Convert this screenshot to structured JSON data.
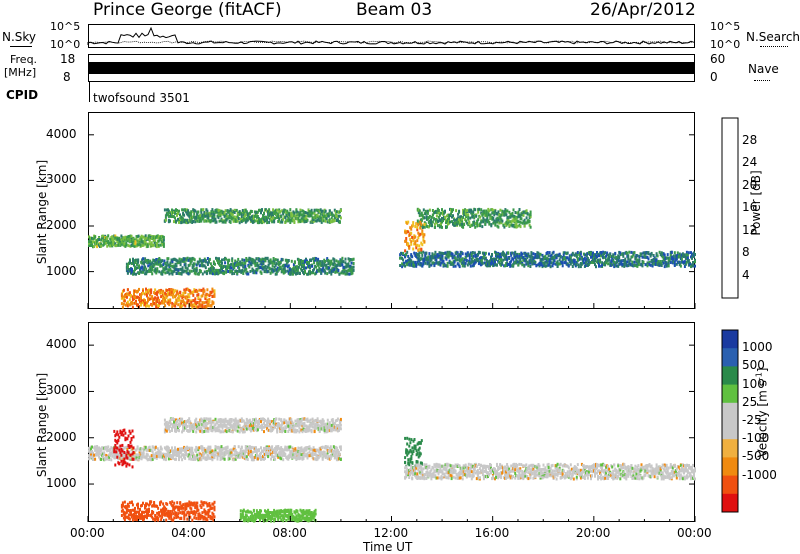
{
  "header": {
    "station": "Prince George (fitACF)",
    "beam": "Beam 03",
    "date": "26/Apr/2012"
  },
  "noise_panel": {
    "left_label": "N.Sky",
    "right_label": "N.Search",
    "top_tick": "10^5",
    "bottom_tick": "10^0"
  },
  "freq_panel": {
    "left_label_1": "Freq.",
    "left_label_2": "[MHz]",
    "top_tick": "18",
    "bottom_tick": "8",
    "right_label": "Nave",
    "right_top_tick": "60",
    "right_bottom_tick": "0"
  },
  "cpid_panel": {
    "left_label": "CPID",
    "program": "twofsound 3501"
  },
  "x_axis": {
    "label": "Time UT",
    "ticks": [
      "00:00",
      "04:00",
      "08:00",
      "12:00",
      "16:00",
      "20:00",
      "00:00"
    ]
  },
  "colors": {
    "power": [
      "#1a1aff",
      "#1a4fb0",
      "#2a7a6a",
      "#3a9a4a",
      "#7cc040",
      "#f0c020",
      "#f08a10",
      "#f05010",
      "#e01a1a"
    ],
    "velocity": [
      "#e01010",
      "#f05010",
      "#f08a10",
      "#f0b040",
      "#c8c8c8",
      "#c8c8c8",
      "#60c040",
      "#2a8a4a",
      "#2a60b0",
      "#1a3aa0"
    ]
  },
  "chart_data": [
    {
      "type": "heatmap",
      "title": "",
      "xlabel": "",
      "ylabel": "Slant Range [km]",
      "xlim": [
        0,
        24
      ],
      "ylim": [
        180,
        4500
      ],
      "yticks": [
        1000,
        2000,
        3000,
        4000
      ],
      "colorbar": {
        "label": "Power [dB]",
        "range": [
          0,
          32
        ],
        "ticks": [
          "4",
          "8",
          "12",
          "16",
          "20",
          "24",
          "28"
        ]
      },
      "echo_bands": [
        {
          "x_start": 0.0,
          "x_end": 3.0,
          "y_center": 1700,
          "y_width": 150,
          "level": 14
        },
        {
          "x_start": 3.0,
          "x_end": 10.0,
          "y_center": 2250,
          "y_width": 180,
          "level": 12
        },
        {
          "x_start": 1.5,
          "x_end": 10.5,
          "y_center": 1150,
          "y_width": 220,
          "level": 10
        },
        {
          "x_start": 1.3,
          "x_end": 5.0,
          "y_center": 450,
          "y_width": 250,
          "level": 24
        },
        {
          "x_start": 12.3,
          "x_end": 24.0,
          "y_center": 1300,
          "y_width": 200,
          "level": 8
        },
        {
          "x_start": 13.0,
          "x_end": 17.5,
          "y_center": 2200,
          "y_width": 250,
          "level": 12
        },
        {
          "x_start": 12.5,
          "x_end": 13.3,
          "y_center": 1800,
          "y_width": 400,
          "level": 22
        }
      ]
    },
    {
      "type": "heatmap",
      "title": "",
      "xlabel": "Time UT",
      "ylabel": "Slant Range [km]",
      "xlim": [
        0,
        24
      ],
      "ylim": [
        180,
        4500
      ],
      "yticks": [
        1000,
        2000,
        3000,
        4000
      ],
      "colorbar": {
        "label": "Velocity [m s^-1]",
        "range": [
          -1000,
          1000
        ],
        "ticks": [
          "1000",
          "500",
          "100",
          "25",
          "-25",
          "-100",
          "-500",
          "-1000"
        ]
      },
      "echo_bands": [
        {
          "x_start": 0.0,
          "x_end": 10.0,
          "y_center": 1700,
          "y_width": 180,
          "level": 0
        },
        {
          "x_start": 1.0,
          "x_end": 1.8,
          "y_center": 1800,
          "y_width": 500,
          "level": -900
        },
        {
          "x_start": 1.3,
          "x_end": 5.0,
          "y_center": 450,
          "y_width": 250,
          "level": -300
        },
        {
          "x_start": 3.0,
          "x_end": 10.0,
          "y_center": 2300,
          "y_width": 180,
          "level": 0
        },
        {
          "x_start": 6.0,
          "x_end": 9.0,
          "y_center": 350,
          "y_width": 150,
          "level": 60
        },
        {
          "x_start": 12.5,
          "x_end": 13.2,
          "y_center": 1700,
          "y_width": 400,
          "level": 300
        },
        {
          "x_start": 12.5,
          "x_end": 24.0,
          "y_center": 1300,
          "y_width": 200,
          "level": 0
        }
      ]
    }
  ]
}
